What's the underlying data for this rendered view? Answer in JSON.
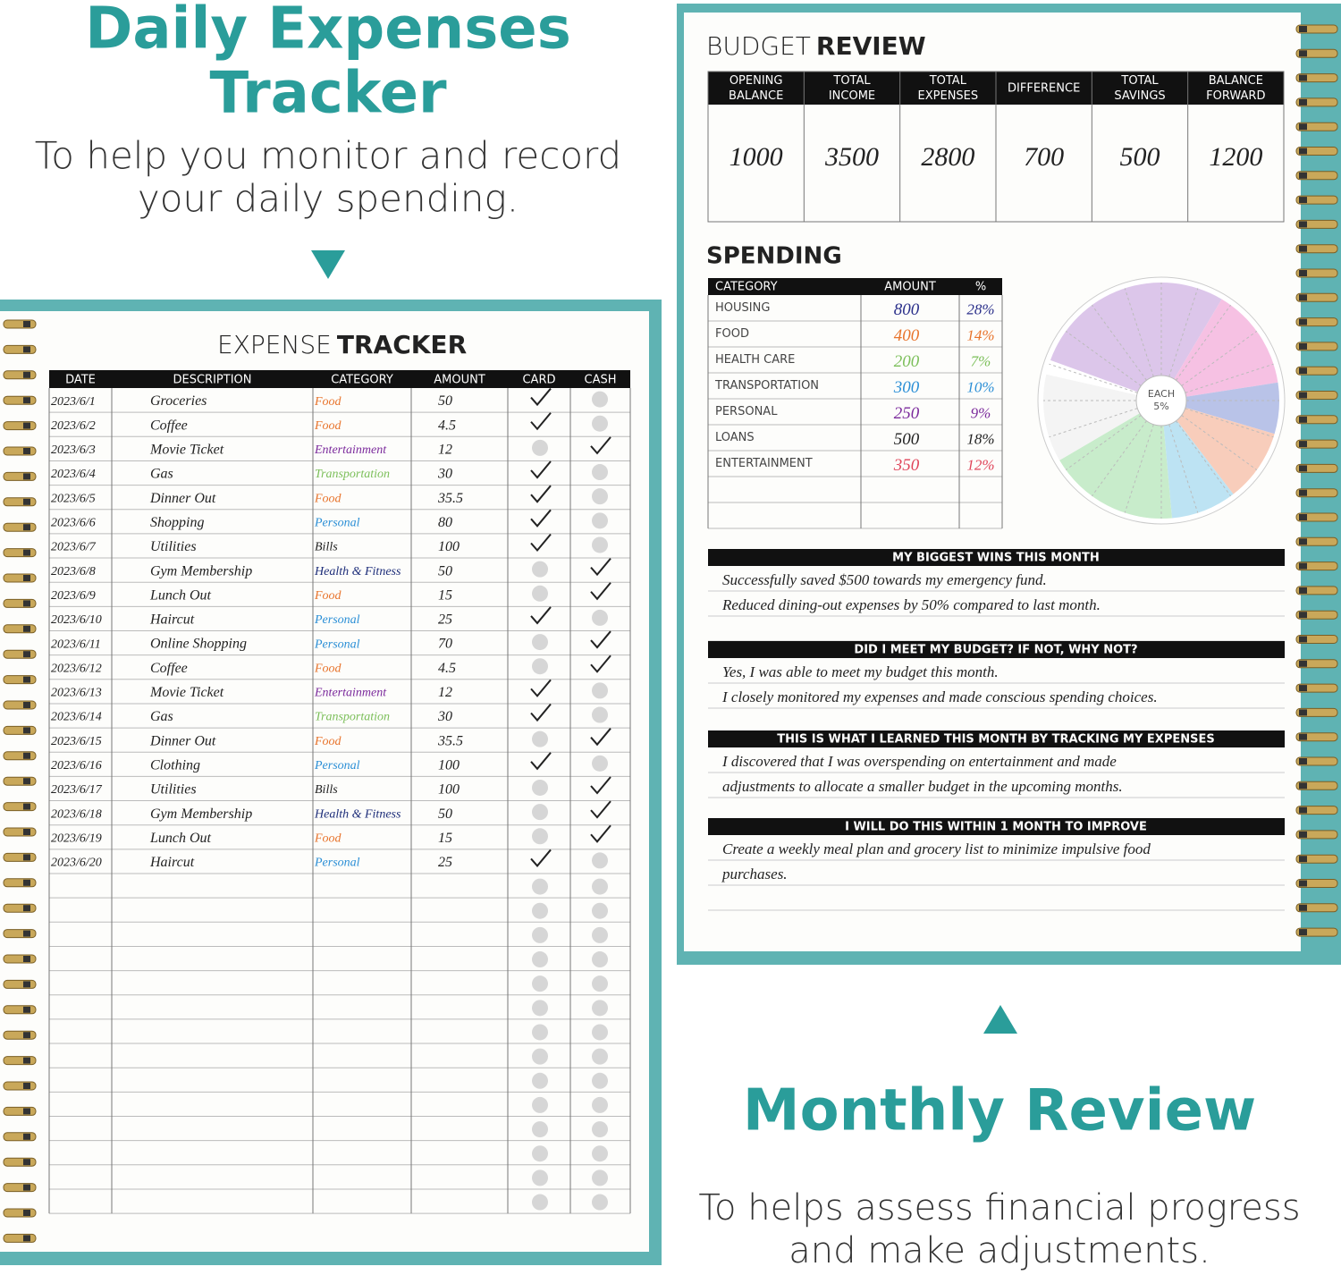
{
  "left_promo": {
    "title_lines": [
      "Daily Expenses",
      "Tracker"
    ],
    "subtitle_lines": [
      "To help you monitor and record",
      "your daily spending."
    ]
  },
  "expense_tracker": {
    "title_light": "EXPENSE",
    "title_bold": "TRACKER",
    "columns": [
      "DATE",
      "DESCRIPTION",
      "CATEGORY",
      "AMOUNT",
      "CARD",
      "CASH"
    ],
    "category_colors": {
      "Food": "#e8742c",
      "Entertainment": "#7b2a9c",
      "Transportation": "#7cbf5a",
      "Personal": "#2b8fd6",
      "Health & Fitness": "#1f2f7a",
      "Bills": "#222222"
    },
    "rows": [
      {
        "date": "2023/6/1",
        "description": "Groceries",
        "category": "Food",
        "amount": 50,
        "card": true,
        "cash": false
      },
      {
        "date": "2023/6/2",
        "description": "Coffee",
        "category": "Food",
        "amount": 4.5,
        "card": true,
        "cash": false
      },
      {
        "date": "2023/6/3",
        "description": "Movie Ticket",
        "category": "Entertainment",
        "amount": 12,
        "card": false,
        "cash": true
      },
      {
        "date": "2023/6/4",
        "description": "Gas",
        "category": "Transportation",
        "amount": 30,
        "card": true,
        "cash": false
      },
      {
        "date": "2023/6/5",
        "description": "Dinner Out",
        "category": "Food",
        "amount": 35.5,
        "card": true,
        "cash": false
      },
      {
        "date": "2023/6/6",
        "description": "Shopping",
        "category": "Personal",
        "amount": 80,
        "card": true,
        "cash": false
      },
      {
        "date": "2023/6/7",
        "description": "Utilities",
        "category": "Bills",
        "amount": 100,
        "card": true,
        "cash": false
      },
      {
        "date": "2023/6/8",
        "description": "Gym Membership",
        "category": "Health & Fitness",
        "amount": 50,
        "card": false,
        "cash": true
      },
      {
        "date": "2023/6/9",
        "description": "Lunch Out",
        "category": "Food",
        "amount": 15,
        "card": false,
        "cash": true
      },
      {
        "date": "2023/6/10",
        "description": "Haircut",
        "category": "Personal",
        "amount": 25,
        "card": true,
        "cash": false
      },
      {
        "date": "2023/6/11",
        "description": "Online Shopping",
        "category": "Personal",
        "amount": 70,
        "card": false,
        "cash": true
      },
      {
        "date": "2023/6/12",
        "description": "Coffee",
        "category": "Food",
        "amount": 4.5,
        "card": false,
        "cash": true
      },
      {
        "date": "2023/6/13",
        "description": "Movie Ticket",
        "category": "Entertainment",
        "amount": 12,
        "card": true,
        "cash": false
      },
      {
        "date": "2023/6/14",
        "description": "Gas",
        "category": "Transportation",
        "amount": 30,
        "card": true,
        "cash": false
      },
      {
        "date": "2023/6/15",
        "description": "Dinner Out",
        "category": "Food",
        "amount": 35.5,
        "card": false,
        "cash": true
      },
      {
        "date": "2023/6/16",
        "description": "Clothing",
        "category": "Personal",
        "amount": 100,
        "card": true,
        "cash": false
      },
      {
        "date": "2023/6/17",
        "description": "Utilities",
        "category": "Bills",
        "amount": 100,
        "card": false,
        "cash": true
      },
      {
        "date": "2023/6/18",
        "description": "Gym Membership",
        "category": "Health & Fitness",
        "amount": 50,
        "card": false,
        "cash": true
      },
      {
        "date": "2023/6/19",
        "description": "Lunch Out",
        "category": "Food",
        "amount": 15,
        "card": false,
        "cash": true
      },
      {
        "date": "2023/6/20",
        "description": "Haircut",
        "category": "Personal",
        "amount": 25,
        "card": true,
        "cash": false
      }
    ]
  },
  "budget_review": {
    "title_light": "BUDGET",
    "title_bold": "REVIEW",
    "columns": [
      {
        "lines": [
          "OPENING",
          "BALANCE"
        ],
        "value": 1000
      },
      {
        "lines": [
          "TOTAL",
          "INCOME"
        ],
        "value": 3500
      },
      {
        "lines": [
          "TOTAL",
          "EXPENSES"
        ],
        "value": 2800
      },
      {
        "lines": [
          "DIFFERENCE"
        ],
        "value": 700
      },
      {
        "lines": [
          "TOTAL",
          "SAVINGS"
        ],
        "value": 500
      },
      {
        "lines": [
          "BALANCE",
          "FORWARD"
        ],
        "value": 1200
      }
    ]
  },
  "spending": {
    "title": "SPENDING",
    "columns": [
      "CATEGORY",
      "AMOUNT",
      "%"
    ],
    "rows": [
      {
        "category": "HOUSING",
        "amount": 800,
        "percent": 28,
        "percent_label": "28%",
        "ink": "#2a2f8a",
        "color": "#dcc6ea"
      },
      {
        "category": "FOOD",
        "amount": 400,
        "percent": 14,
        "percent_label": "14%",
        "ink": "#e8742c",
        "color": "#f6c1e3"
      },
      {
        "category": "HEALTH CARE",
        "amount": 200,
        "percent": 7,
        "percent_label": "7%",
        "ink": "#7cbf5a",
        "color": "#b9c3e8"
      },
      {
        "category": "TRANSPORTATION",
        "amount": 300,
        "percent": 10,
        "percent_label": "10%",
        "ink": "#2b8fd6",
        "color": "#f8cdbb"
      },
      {
        "category": "PERSONAL",
        "amount": 250,
        "percent": 9,
        "percent_label": "9%",
        "ink": "#7b2a9c",
        "color": "#bde3f3"
      },
      {
        "category": "LOANS",
        "amount": 500,
        "percent": 18,
        "percent_label": "18%",
        "ink": "#222222",
        "color": "#c8eccb"
      },
      {
        "category": "ENTERTAINMENT",
        "amount": 350,
        "percent": 12,
        "percent_label": "12%",
        "ink": "#e0455a",
        "color": "#f4f4f4"
      }
    ],
    "pie_center_lines": [
      "EACH",
      "5%"
    ]
  },
  "notes": [
    {
      "heading": "MY BIGGEST WINS THIS MONTH",
      "lines": [
        "Successfully saved $500 towards my emergency fund.",
        "Reduced dining-out expenses by 50% compared to last month."
      ]
    },
    {
      "heading": "DID I MEET MY BUDGET? IF NOT, WHY NOT?",
      "lines": [
        "Yes, I was able to meet my budget this month.",
        "I closely monitored my expenses and made conscious spending choices."
      ]
    },
    {
      "heading": "THIS IS WHAT I LEARNED THIS MONTH BY TRACKING MY EXPENSES",
      "lines": [
        "I discovered that I was overspending on entertainment and made",
        "adjustments to allocate a smaller budget in the upcoming months."
      ]
    },
    {
      "heading": "I WILL DO THIS WITHIN 1 MONTH TO IMPROVE",
      "lines": [
        "Create a weekly meal plan and grocery list to minimize impulsive food",
        "purchases."
      ]
    }
  ],
  "right_promo": {
    "title": "Monthly Review",
    "subtitle_lines": [
      "To helps assess financial progress",
      "and make adjustments."
    ]
  }
}
